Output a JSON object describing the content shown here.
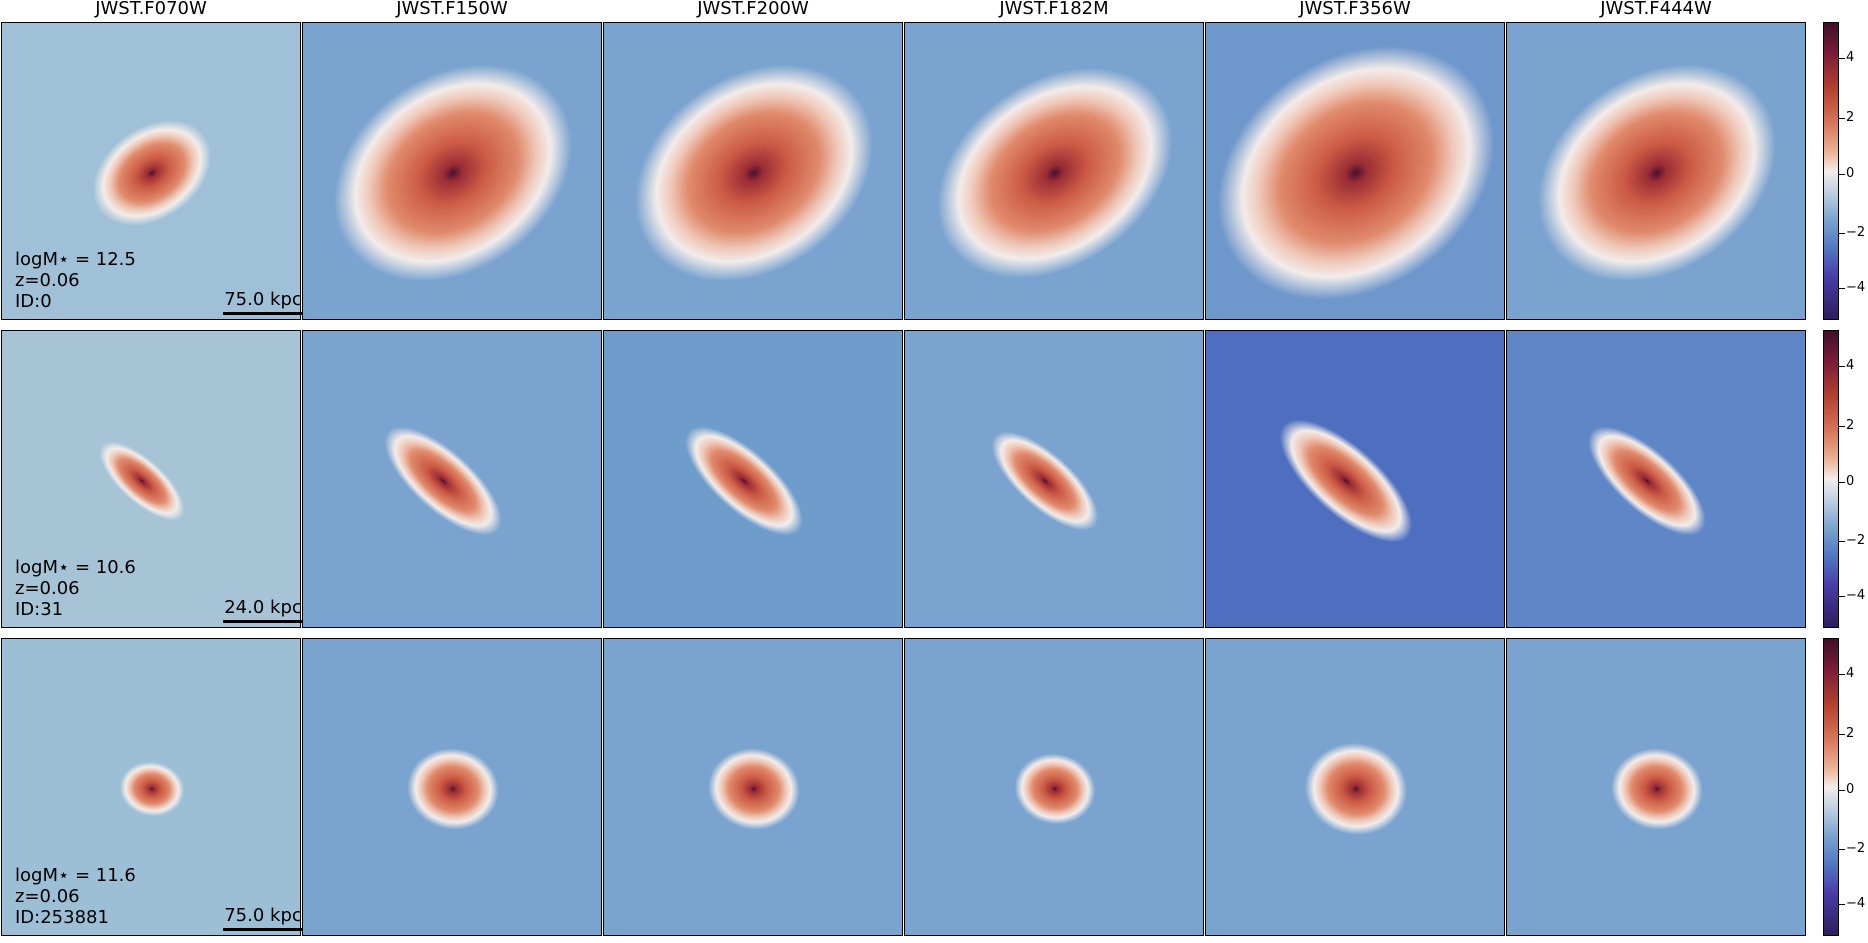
{
  "bands": [
    "JWST.F070W",
    "JWST.F150W",
    "JWST.F200W",
    "JWST.F182M",
    "JWST.F356W",
    "JWST.F444W"
  ],
  "galaxies": [
    {
      "logm_label": "logM⋆ = 12.5",
      "z_label": "z=0.06",
      "id_label": "ID:0",
      "scale_label": "75.0 kpc",
      "shape": "large elliptical disk"
    },
    {
      "logm_label": "logM⋆ = 10.6",
      "z_label": "z=0.06",
      "id_label": "ID:31",
      "scale_label": "24.0 kpc",
      "shape": "irregular elongated clumpy"
    },
    {
      "logm_label": "logM⋆ = 11.6",
      "z_label": "z=0.06",
      "id_label": "ID:253881",
      "scale_label": "75.0 kpc",
      "shape": "compact round core with halo"
    }
  ],
  "colorbar": {
    "ticks": [
      "4",
      "2",
      "0",
      "−2",
      "−4"
    ],
    "colors": {
      "high": "#3f0f2b",
      "mid_high": "#d9765b",
      "zero": "#f3ecea",
      "mid_low": "#7fa6cf",
      "low": "#2d1e5c"
    }
  }
}
